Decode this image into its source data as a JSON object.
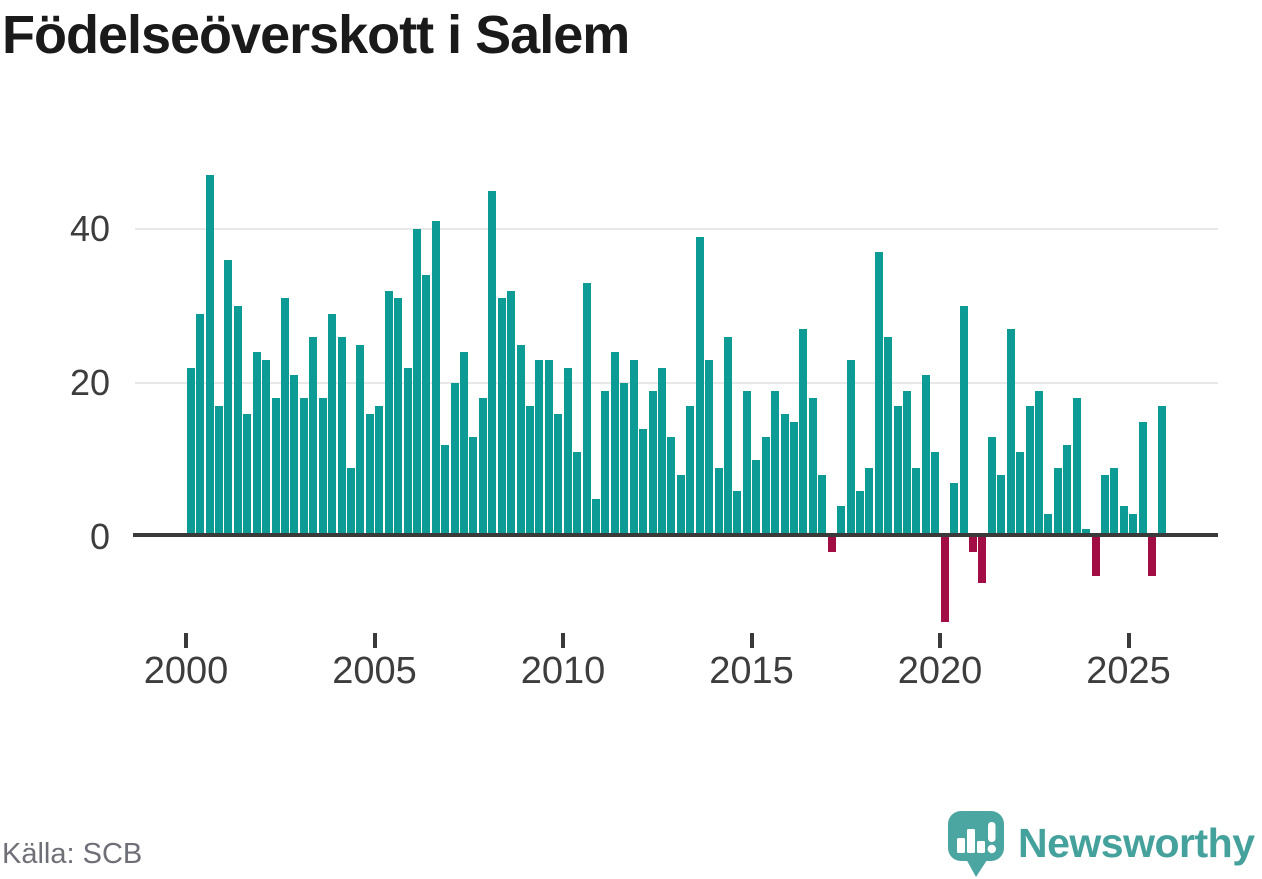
{
  "title": "Födelseöverskott i Salem",
  "source": {
    "label": "Källa: SCB"
  },
  "branding": {
    "name": "Newsworthy",
    "logo_icon": "speech-bubble-with-bar-chart-and-exclamation"
  },
  "colors": {
    "title_text": "#1a1a1a",
    "axis_text": "#3d3d3d",
    "gridline": "#e8e8e8",
    "axis_line": "#3a3a3a",
    "positive_bar": "#0d9b95",
    "negative_bar": "#a30d45",
    "source_text": "#6f6f78",
    "brand_teal": "#44a19c"
  },
  "chart_data": {
    "type": "bar",
    "title": "Födelseöverskott i Salem",
    "xlabel": "",
    "ylabel": "",
    "grid": "horizontal-only",
    "legend": "none",
    "frequency": "quarterly",
    "x_range": "2000 Q1 – 2025 Q4",
    "ylim": [
      -13,
      48
    ],
    "y_axis": {
      "ticks": [
        {
          "label": "0",
          "value": 0
        },
        {
          "label": "20",
          "value": 20
        },
        {
          "label": "40",
          "value": 40
        }
      ]
    },
    "x_axis": {
      "ticks": [
        {
          "label": "2000",
          "year": 2000
        },
        {
          "label": "2005",
          "year": 2005
        },
        {
          "label": "2010",
          "year": 2010
        },
        {
          "label": "2015",
          "year": 2015
        },
        {
          "label": "2020",
          "year": 2020
        },
        {
          "label": "2025",
          "year": 2025
        }
      ]
    },
    "series": [
      {
        "name": "Födelseöverskott",
        "positive_color": "#0d9b95",
        "negative_color": "#a30d45",
        "data_by_year": [
          {
            "year": 2000,
            "quarters": [
              22,
              29,
              47,
              17
            ]
          },
          {
            "year": 2001,
            "quarters": [
              36,
              30,
              16,
              24
            ]
          },
          {
            "year": 2002,
            "quarters": [
              23,
              18,
              31,
              21
            ]
          },
          {
            "year": 2003,
            "quarters": [
              18,
              26,
              18,
              29
            ]
          },
          {
            "year": 2004,
            "quarters": [
              26,
              9,
              25,
              16
            ]
          },
          {
            "year": 2005,
            "quarters": [
              17,
              32,
              31,
              22
            ]
          },
          {
            "year": 2006,
            "quarters": [
              40,
              34,
              41,
              12
            ]
          },
          {
            "year": 2007,
            "quarters": [
              20,
              24,
              13,
              18
            ]
          },
          {
            "year": 2008,
            "quarters": [
              45,
              31,
              32,
              25
            ]
          },
          {
            "year": 2009,
            "quarters": [
              17,
              23,
              23,
              16
            ]
          },
          {
            "year": 2010,
            "quarters": [
              22,
              11,
              33,
              5
            ]
          },
          {
            "year": 2011,
            "quarters": [
              19,
              24,
              20,
              23
            ]
          },
          {
            "year": 2012,
            "quarters": [
              14,
              19,
              22,
              13
            ]
          },
          {
            "year": 2013,
            "quarters": [
              8,
              17,
              39,
              23
            ]
          },
          {
            "year": 2014,
            "quarters": [
              9,
              26,
              6,
              19
            ]
          },
          {
            "year": 2015,
            "quarters": [
              10,
              13,
              19,
              16
            ]
          },
          {
            "year": 2016,
            "quarters": [
              15,
              27,
              18,
              8
            ]
          },
          {
            "year": 2017,
            "quarters": [
              -2,
              4,
              23,
              6
            ]
          },
          {
            "year": 2018,
            "quarters": [
              9,
              37,
              26,
              17
            ]
          },
          {
            "year": 2019,
            "quarters": [
              19,
              9,
              21,
              11
            ]
          },
          {
            "year": 2020,
            "quarters": [
              -11,
              7,
              30,
              -2
            ]
          },
          {
            "year": 2021,
            "quarters": [
              -6,
              13,
              8,
              27
            ]
          },
          {
            "year": 2022,
            "quarters": [
              11,
              17,
              19,
              3
            ]
          },
          {
            "year": 2023,
            "quarters": [
              9,
              12,
              18,
              1
            ]
          },
          {
            "year": 2024,
            "quarters": [
              -5,
              8,
              9,
              4
            ]
          },
          {
            "year": 2025,
            "quarters": [
              3,
              15,
              -5,
              17
            ]
          }
        ]
      }
    ]
  }
}
